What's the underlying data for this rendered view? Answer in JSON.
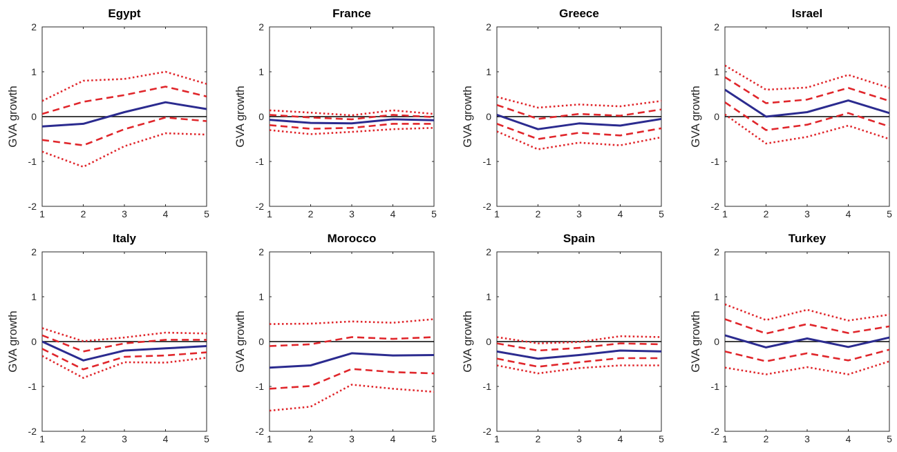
{
  "chart_data": [
    {
      "type": "line",
      "title": "Egypt",
      "ylabel": "GVA growth",
      "x": [
        1,
        2,
        3,
        4,
        5
      ],
      "xlim": [
        1,
        5
      ],
      "ylim": [
        -2,
        2
      ],
      "xticks": [
        "1",
        "2",
        "3",
        "4",
        "5"
      ],
      "yticks": [
        "-2",
        "-1",
        "0",
        "1",
        "2"
      ],
      "series": [
        {
          "style": "solid",
          "color": "#2b2b8f",
          "values": [
            -0.22,
            -0.16,
            0.1,
            0.32,
            0.17
          ]
        },
        {
          "style": "dashed",
          "color": "#e0262b",
          "values": [
            0.06,
            0.33,
            0.48,
            0.67,
            0.45
          ]
        },
        {
          "style": "dashed",
          "color": "#e0262b",
          "values": [
            -0.52,
            -0.64,
            -0.28,
            -0.02,
            -0.1
          ]
        },
        {
          "style": "dotted",
          "color": "#e0262b",
          "values": [
            0.35,
            0.8,
            0.84,
            1.0,
            0.73
          ]
        },
        {
          "style": "dotted",
          "color": "#e0262b",
          "values": [
            -0.78,
            -1.12,
            -0.66,
            -0.37,
            -0.4
          ]
        }
      ]
    },
    {
      "type": "line",
      "title": "France",
      "ylabel": "GVA growth",
      "x": [
        1,
        2,
        3,
        4,
        5
      ],
      "xlim": [
        1,
        5
      ],
      "ylim": [
        -2,
        2
      ],
      "xticks": [
        "1",
        "2",
        "3",
        "4",
        "5"
      ],
      "yticks": [
        "-2",
        "-1",
        "0",
        "1",
        "2"
      ],
      "series": [
        {
          "style": "solid",
          "color": "#2b2b8f",
          "values": [
            -0.07,
            -0.14,
            -0.15,
            -0.06,
            -0.08
          ]
        },
        {
          "style": "dashed",
          "color": "#e0262b",
          "values": [
            0.04,
            -0.02,
            -0.06,
            0.04,
            -0.01
          ]
        },
        {
          "style": "dashed",
          "color": "#e0262b",
          "values": [
            -0.19,
            -0.27,
            -0.25,
            -0.16,
            -0.16
          ]
        },
        {
          "style": "dotted",
          "color": "#e0262b",
          "values": [
            0.14,
            0.09,
            0.03,
            0.14,
            0.06
          ]
        },
        {
          "style": "dotted",
          "color": "#e0262b",
          "values": [
            -0.3,
            -0.39,
            -0.34,
            -0.28,
            -0.25
          ]
        }
      ]
    },
    {
      "type": "line",
      "title": "Greece",
      "ylabel": "GVA growth",
      "x": [
        1,
        2,
        3,
        4,
        5
      ],
      "xlim": [
        1,
        5
      ],
      "ylim": [
        -2,
        2
      ],
      "xticks": [
        "1",
        "2",
        "3",
        "4",
        "5"
      ],
      "yticks": [
        "-2",
        "-1",
        "0",
        "1",
        "2"
      ],
      "series": [
        {
          "style": "solid",
          "color": "#2b2b8f",
          "values": [
            0.04,
            -0.28,
            -0.15,
            -0.2,
            -0.05
          ]
        },
        {
          "style": "dashed",
          "color": "#e0262b",
          "values": [
            0.26,
            -0.05,
            0.06,
            0.02,
            0.16
          ]
        },
        {
          "style": "dashed",
          "color": "#e0262b",
          "values": [
            -0.16,
            -0.5,
            -0.36,
            -0.42,
            -0.26
          ]
        },
        {
          "style": "dotted",
          "color": "#e0262b",
          "values": [
            0.44,
            0.2,
            0.27,
            0.23,
            0.35
          ]
        },
        {
          "style": "dotted",
          "color": "#e0262b",
          "values": [
            -0.33,
            -0.73,
            -0.58,
            -0.64,
            -0.46
          ]
        }
      ]
    },
    {
      "type": "line",
      "title": "Israel",
      "ylabel": "GVA growth",
      "x": [
        1,
        2,
        3,
        4,
        5
      ],
      "xlim": [
        1,
        5
      ],
      "ylim": [
        -2,
        2
      ],
      "xticks": [
        "1",
        "2",
        "3",
        "4",
        "5"
      ],
      "yticks": [
        "-2",
        "-1",
        "0",
        "1",
        "2"
      ],
      "series": [
        {
          "style": "solid",
          "color": "#2b2b8f",
          "values": [
            0.6,
            0.0,
            0.1,
            0.36,
            0.08
          ]
        },
        {
          "style": "dashed",
          "color": "#e0262b",
          "values": [
            0.88,
            0.3,
            0.38,
            0.64,
            0.35
          ]
        },
        {
          "style": "dashed",
          "color": "#e0262b",
          "values": [
            0.32,
            -0.3,
            -0.18,
            0.08,
            -0.22
          ]
        },
        {
          "style": "dotted",
          "color": "#e0262b",
          "values": [
            1.14,
            0.6,
            0.65,
            0.93,
            0.64
          ]
        },
        {
          "style": "dotted",
          "color": "#e0262b",
          "values": [
            0.05,
            -0.6,
            -0.45,
            -0.2,
            -0.5
          ]
        }
      ]
    },
    {
      "type": "line",
      "title": "Italy",
      "ylabel": "GVA growth",
      "x": [
        1,
        2,
        3,
        4,
        5
      ],
      "xlim": [
        1,
        5
      ],
      "ylim": [
        -2,
        2
      ],
      "xticks": [
        "1",
        "2",
        "3",
        "4",
        "5"
      ],
      "yticks": [
        "-2",
        "-1",
        "0",
        "1",
        "2"
      ],
      "series": [
        {
          "style": "solid",
          "color": "#2b2b8f",
          "values": [
            0.0,
            -0.42,
            -0.2,
            -0.15,
            -0.1
          ]
        },
        {
          "style": "dashed",
          "color": "#e0262b",
          "values": [
            0.14,
            -0.22,
            -0.04,
            0.04,
            0.04
          ]
        },
        {
          "style": "dashed",
          "color": "#e0262b",
          "values": [
            -0.16,
            -0.62,
            -0.34,
            -0.31,
            -0.24
          ]
        },
        {
          "style": "dotted",
          "color": "#e0262b",
          "values": [
            0.3,
            0.01,
            0.09,
            0.2,
            0.18
          ]
        },
        {
          "style": "dotted",
          "color": "#e0262b",
          "values": [
            -0.32,
            -0.81,
            -0.46,
            -0.47,
            -0.36
          ]
        }
      ]
    },
    {
      "type": "line",
      "title": "Morocco",
      "ylabel": "GVA growth",
      "x": [
        1,
        2,
        3,
        4,
        5
      ],
      "xlim": [
        1,
        5
      ],
      "ylim": [
        -2,
        2
      ],
      "xticks": [
        "1",
        "2",
        "3",
        "4",
        "5"
      ],
      "yticks": [
        "-2",
        "-1",
        "0",
        "1",
        "2"
      ],
      "series": [
        {
          "style": "solid",
          "color": "#2b2b8f",
          "values": [
            -0.58,
            -0.53,
            -0.26,
            -0.31,
            -0.3
          ]
        },
        {
          "style": "dashed",
          "color": "#e0262b",
          "values": [
            -0.1,
            -0.06,
            0.1,
            0.06,
            0.1
          ]
        },
        {
          "style": "dashed",
          "color": "#e0262b",
          "values": [
            -1.05,
            -0.99,
            -0.61,
            -0.68,
            -0.71
          ]
        },
        {
          "style": "dotted",
          "color": "#e0262b",
          "values": [
            0.39,
            0.4,
            0.45,
            0.42,
            0.5
          ]
        },
        {
          "style": "dotted",
          "color": "#e0262b",
          "values": [
            -1.54,
            -1.45,
            -0.96,
            -1.05,
            -1.12
          ]
        }
      ]
    },
    {
      "type": "line",
      "title": "Spain",
      "ylabel": "GVA growth",
      "x": [
        1,
        2,
        3,
        4,
        5
      ],
      "xlim": [
        1,
        5
      ],
      "ylim": [
        -2,
        2
      ],
      "xticks": [
        "1",
        "2",
        "3",
        "4",
        "5"
      ],
      "yticks": [
        "-2",
        "-1",
        "0",
        "1",
        "2"
      ],
      "series": [
        {
          "style": "solid",
          "color": "#2b2b8f",
          "values": [
            -0.22,
            -0.38,
            -0.3,
            -0.2,
            -0.22
          ]
        },
        {
          "style": "dashed",
          "color": "#e0262b",
          "values": [
            -0.04,
            -0.2,
            -0.14,
            -0.04,
            -0.06
          ]
        },
        {
          "style": "dashed",
          "color": "#e0262b",
          "values": [
            -0.38,
            -0.56,
            -0.46,
            -0.37,
            -0.37
          ]
        },
        {
          "style": "dotted",
          "color": "#e0262b",
          "values": [
            0.1,
            -0.04,
            -0.01,
            0.12,
            0.1
          ]
        },
        {
          "style": "dotted",
          "color": "#e0262b",
          "values": [
            -0.53,
            -0.71,
            -0.59,
            -0.53,
            -0.53
          ]
        }
      ]
    },
    {
      "type": "line",
      "title": "Turkey",
      "ylabel": "GVA growth",
      "x": [
        1,
        2,
        3,
        4,
        5
      ],
      "xlim": [
        1,
        5
      ],
      "ylim": [
        -2,
        2
      ],
      "xticks": [
        "1",
        "2",
        "3",
        "4",
        "5"
      ],
      "yticks": [
        "-2",
        "-1",
        "0",
        "1",
        "2"
      ],
      "series": [
        {
          "style": "solid",
          "color": "#2b2b8f",
          "values": [
            0.14,
            -0.13,
            0.07,
            -0.12,
            0.09
          ]
        },
        {
          "style": "dashed",
          "color": "#e0262b",
          "values": [
            0.5,
            0.18,
            0.39,
            0.19,
            0.34
          ]
        },
        {
          "style": "dashed",
          "color": "#e0262b",
          "values": [
            -0.22,
            -0.44,
            -0.26,
            -0.42,
            -0.18
          ]
        },
        {
          "style": "dotted",
          "color": "#e0262b",
          "values": [
            0.83,
            0.48,
            0.71,
            0.47,
            0.6
          ]
        },
        {
          "style": "dotted",
          "color": "#e0262b",
          "values": [
            -0.58,
            -0.73,
            -0.57,
            -0.73,
            -0.44
          ]
        }
      ]
    }
  ]
}
